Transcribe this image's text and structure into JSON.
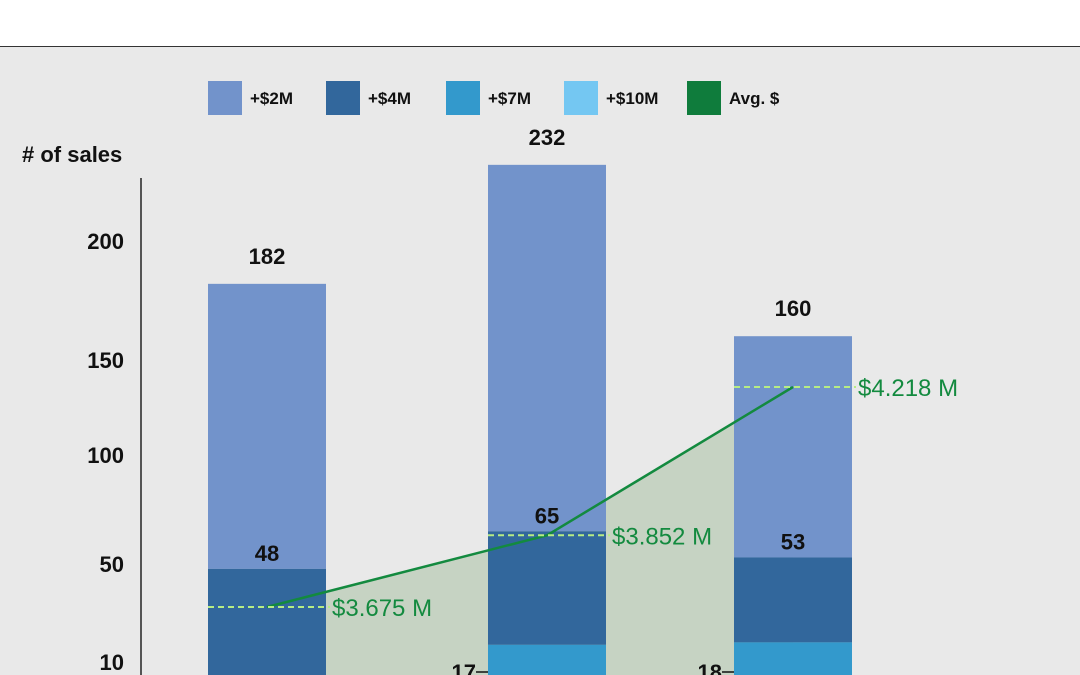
{
  "chart_data": {
    "type": "bar",
    "stacked": true,
    "ylabel": "# of sales",
    "yticks": [
      200,
      150,
      100,
      50,
      10
    ],
    "groups": [
      {
        "total": 182,
        "tier_4m": 48
      },
      {
        "total": 232,
        "tier_4m": 65,
        "tier_7m": 17
      },
      {
        "total": 160,
        "tier_4m": 53,
        "tier_7m": 18
      }
    ],
    "avg": {
      "name": "Avg. $",
      "values": [
        3.675,
        3.852,
        4.218
      ],
      "labels": [
        "$3.675 M",
        "$3.852 M",
        "$4.218 M"
      ]
    },
    "legend": [
      {
        "label": "+$2M",
        "color": "#7293cb"
      },
      {
        "label": "+$4M",
        "color": "#32679c"
      },
      {
        "label": "+$7M",
        "color": "#3399cc"
      },
      {
        "label": "+$10M",
        "color": "#74c7f2"
      },
      {
        "label": "Avg. $",
        "color": "#0f7c3c"
      }
    ],
    "legend_placement": "top",
    "grid": false,
    "colors": {
      "avg_line": "#138a3f",
      "avg_dash": "#b6ec84",
      "avg_area": "#c6d3c3"
    }
  }
}
